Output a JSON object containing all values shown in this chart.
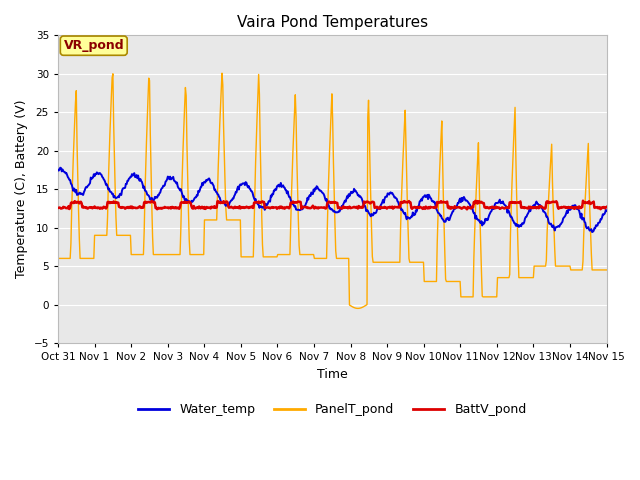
{
  "title": "Vaira Pond Temperatures",
  "xlabel": "Time",
  "ylabel": "Temperature (C), Battery (V)",
  "xlim_start": 0,
  "xlim_end": 15,
  "ylim": [
    -5,
    35
  ],
  "yticks": [
    -5,
    0,
    5,
    10,
    15,
    20,
    25,
    30,
    35
  ],
  "xtick_labels": [
    "Oct 31",
    "Nov 1",
    "Nov 2",
    "Nov 3",
    "Nov 4",
    "Nov 5",
    "Nov 6",
    "Nov 7",
    "Nov 8",
    "Nov 9",
    "Nov 10",
    "Nov 11",
    "Nov 12",
    "Nov 13",
    "Nov 14",
    "Nov 15"
  ],
  "water_color": "#0000dd",
  "panel_color": "#ffaa00",
  "batt_color": "#dd0000",
  "fig_bg": "#ffffff",
  "plot_bg": "#e8e8e8",
  "annotation_text": "VR_pond",
  "annotation_color": "#8b0000",
  "annotation_bg": "#ffff99",
  "legend_labels": [
    "Water_temp",
    "PanelT_pond",
    "BattV_pond"
  ]
}
